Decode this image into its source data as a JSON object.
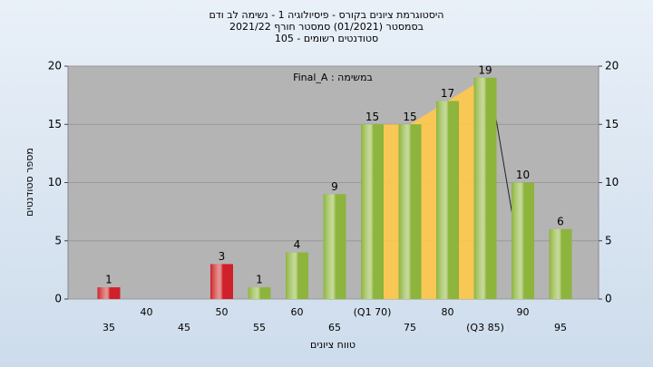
{
  "chart_data": {
    "type": "bar",
    "title": "היסטוגרמת ציונים בקורס - פיסיולוגיה 1 - נשימה לב ודם",
    "subtitle": "בסמסטר (01/2021) סמסטר חורף 2021/22",
    "subtitle2": "סטודנטים רשומים - 105",
    "annotation": "במשימה : Final_A",
    "x_label": "טווח ציונים",
    "y_label": "מספר סטודנטים",
    "categories": [
      "35",
      "40",
      "45",
      "50",
      "55",
      "60",
      "65",
      "(Q1 70)",
      "75",
      "80",
      "(Q3 85)",
      "90",
      "95"
    ],
    "values": [
      1,
      null,
      null,
      3,
      1,
      4,
      9,
      15,
      15,
      17,
      19,
      10,
      6
    ],
    "bar_colors": [
      "#d0202a",
      "#d0202a",
      "#d0202a",
      "#d0202a",
      "#8db43c",
      "#8db43c",
      "#8db43c",
      "#8db43c",
      "#8db43c",
      "#8db43c",
      "#8db43c",
      "#8db43c",
      "#8db43c"
    ],
    "ylim": [
      0,
      20
    ],
    "yticks": [
      0,
      5,
      10,
      15,
      20
    ],
    "y2lim": [
      0,
      20
    ],
    "y2ticks": [
      0,
      5,
      10,
      15,
      20
    ]
  }
}
